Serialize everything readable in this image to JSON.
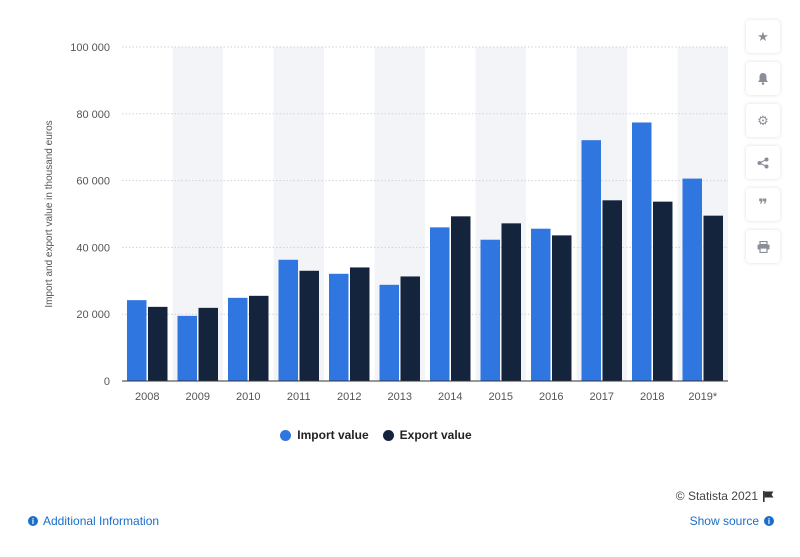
{
  "chart_data": {
    "type": "bar",
    "categories": [
      "2008",
      "2009",
      "2010",
      "2011",
      "2012",
      "2013",
      "2014",
      "2015",
      "2016",
      "2017",
      "2018",
      "2019*"
    ],
    "series": [
      {
        "name": "Import value",
        "color": "#2f76e0",
        "values": [
          24200,
          19500,
          24900,
          36300,
          32100,
          28800,
          46000,
          42300,
          45600,
          72100,
          77400,
          60600
        ]
      },
      {
        "name": "Export value",
        "color": "#14243d",
        "values": [
          22200,
          21900,
          25500,
          33000,
          34000,
          31300,
          49300,
          47200,
          43600,
          54100,
          53700,
          49500
        ]
      }
    ],
    "ylabel": "Import and export value in thousand euros",
    "xlabel": "",
    "ylim": [
      0,
      100000
    ],
    "yticks": [
      0,
      20000,
      40000,
      60000,
      80000,
      100000
    ],
    "ytick_labels": [
      "0",
      "20 000",
      "40 000",
      "60 000",
      "80 000",
      "100 000"
    ],
    "grid": true,
    "legend_position": "bottom"
  },
  "credit": "© Statista 2021",
  "footer": {
    "additional_info": "Additional Information",
    "show_source": "Show source"
  },
  "sidebar_icons": [
    "star-icon",
    "bell-icon",
    "gear-icon",
    "share-icon",
    "quote-icon",
    "print-icon"
  ]
}
